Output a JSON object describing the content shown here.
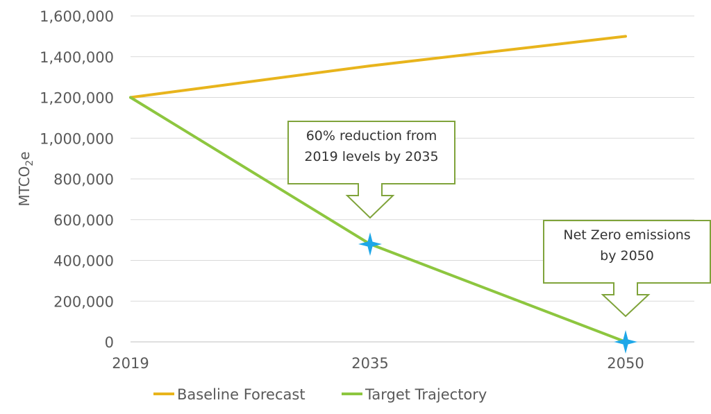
{
  "chart_data": {
    "type": "line",
    "title": "",
    "xlabel": "",
    "ylabel": "MTCO",
    "ylabel_sub": "2",
    "ylabel_suffix": "e",
    "x": [
      "2019",
      "2035",
      "2050"
    ],
    "ylim": [
      0,
      1600000
    ],
    "yticks": [
      0,
      200000,
      400000,
      600000,
      800000,
      1000000,
      1200000,
      1400000,
      1600000
    ],
    "ytick_labels": [
      "0",
      "200,000",
      "400,000",
      "600,000",
      "800,000",
      "1,000,000",
      "1,200,000",
      "1,400,000",
      "1,600,000"
    ],
    "grid": true,
    "legend_position": "bottom",
    "series": [
      {
        "name": "Baseline Forecast",
        "color": "#E8B41C",
        "values": [
          1200000,
          1355000,
          1500000
        ]
      },
      {
        "name": "Target Trajectory",
        "color": "#8DC63F",
        "values": [
          1200000,
          480000,
          0
        ]
      }
    ],
    "markers": [
      {
        "x": "2035",
        "y": 480000,
        "color": "#1EA7E8",
        "shape": "star4"
      },
      {
        "x": "2050",
        "y": 0,
        "color": "#1EA7E8",
        "shape": "star4"
      }
    ],
    "annotations": [
      {
        "lines": [
          "60% reduction from",
          "2019 levels by 2035"
        ],
        "target_x": "2035"
      },
      {
        "lines": [
          "Net Zero emissions",
          "by 2050"
        ],
        "target_x": "2050"
      }
    ]
  }
}
